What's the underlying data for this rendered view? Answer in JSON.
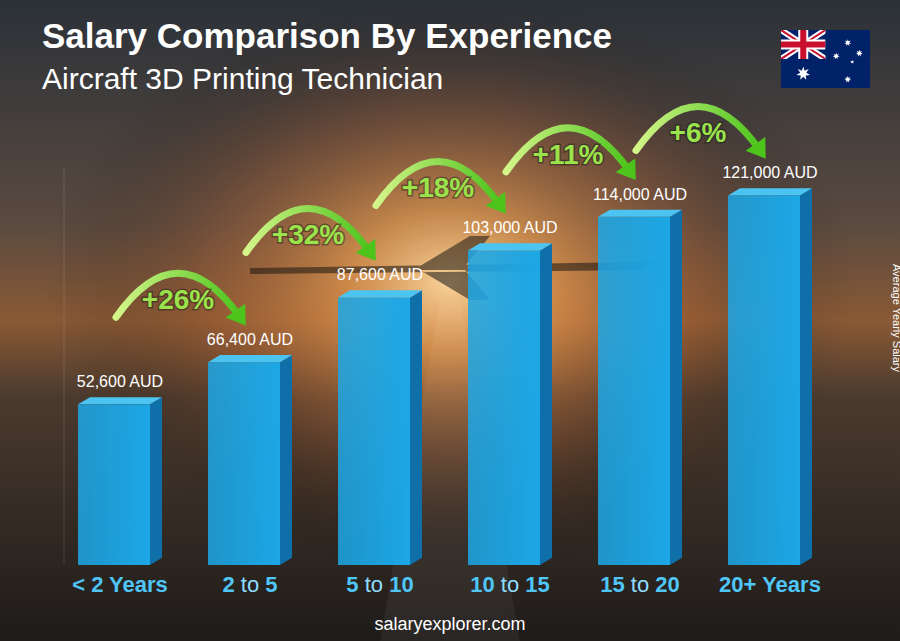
{
  "chart_data": {
    "type": "bar",
    "title": "Salary Comparison By Experience",
    "subtitle": "Aircraft 3D Printing Technician",
    "y_label": "Average Yearly Salary",
    "categories": [
      "< 2 Years",
      "2 to 5",
      "5 to 10",
      "10 to 15",
      "15 to 20",
      "20+ Years"
    ],
    "values": [
      52600,
      66400,
      87600,
      103000,
      114000,
      121000
    ],
    "value_labels": [
      "52,600 AUD",
      "66,400 AUD",
      "87,600 AUD",
      "103,000 AUD",
      "114,000 AUD",
      "121,000 AUD"
    ],
    "data_labels": true,
    "annotations": [
      "+26%",
      "+32%",
      "+18%",
      "+11%",
      "+6%"
    ],
    "source": "salaryexplorer.com",
    "color": "#1ca7e6",
    "ylim": [
      0,
      130000
    ],
    "tick_labels": false,
    "grid": false
  }
}
